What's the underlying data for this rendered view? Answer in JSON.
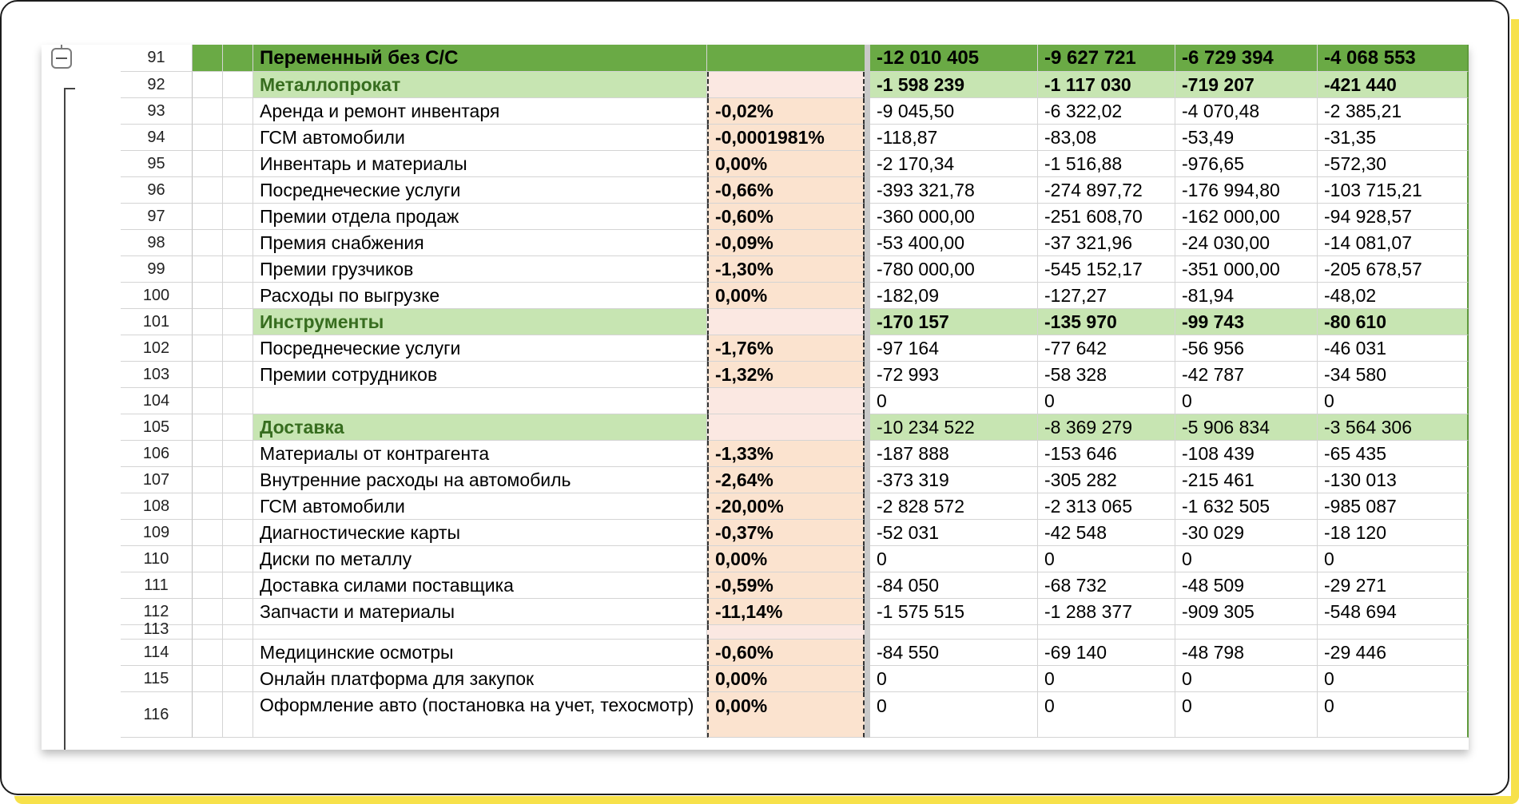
{
  "sheet": {
    "outline_button": "collapse",
    "rows": [
      {
        "num": "91",
        "label": "Переменный без С/С",
        "pct": "",
        "v": [
          "-12 010 405",
          "-9 627 721",
          "-6 729 394",
          "-4 068 553"
        ],
        "kind": "main"
      },
      {
        "num": "92",
        "label": "Металлопрокат",
        "pct": "",
        "v": [
          "-1 598 239",
          "-1 117 030",
          "-719 207",
          "-421 440"
        ],
        "kind": "sub"
      },
      {
        "num": "93",
        "label": "Аренда и ремонт инвентаря",
        "pct": "-0,02%",
        "v": [
          "-9 045,50",
          "-6 322,02",
          "-4 070,48",
          "-2 385,21"
        ],
        "kind": "item"
      },
      {
        "num": "94",
        "label": "ГСМ автомобили",
        "pct": "-0,0001981%",
        "v": [
          "-118,87",
          "-83,08",
          "-53,49",
          "-31,35"
        ],
        "kind": "item"
      },
      {
        "num": "95",
        "label": "Инвентарь и материалы",
        "pct": "0,00%",
        "v": [
          "-2 170,34",
          "-1 516,88",
          "-976,65",
          "-572,30"
        ],
        "kind": "item"
      },
      {
        "num": "96",
        "label": "Посреднеческие услуги",
        "pct": "-0,66%",
        "v": [
          "-393 321,78",
          "-274 897,72",
          "-176 994,80",
          "-103 715,21"
        ],
        "kind": "item"
      },
      {
        "num": "97",
        "label": "Премии отдела продаж",
        "pct": "-0,60%",
        "v": [
          "-360 000,00",
          "-251 608,70",
          "-162 000,00",
          "-94 928,57"
        ],
        "kind": "item"
      },
      {
        "num": "98",
        "label": "Премия снабжения",
        "pct": "-0,09%",
        "v": [
          "-53 400,00",
          "-37 321,96",
          "-24 030,00",
          "-14 081,07"
        ],
        "kind": "item"
      },
      {
        "num": "99",
        "label": "Премии грузчиков",
        "pct": "-1,30%",
        "v": [
          "-780 000,00",
          "-545 152,17",
          "-351 000,00",
          "-205 678,57"
        ],
        "kind": "item"
      },
      {
        "num": "100",
        "label": "Расходы по выгрузке",
        "pct": "0,00%",
        "v": [
          "-182,09",
          "-127,27",
          "-81,94",
          "-48,02"
        ],
        "kind": "item"
      },
      {
        "num": "101",
        "label": "Инструменты",
        "pct": "",
        "v": [
          "-170 157",
          "-135 970",
          "-99 743",
          "-80 610"
        ],
        "kind": "sub"
      },
      {
        "num": "102",
        "label": "Посреднеческие услуги",
        "pct": "-1,76%",
        "v": [
          "-97 164",
          "-77 642",
          "-56 956",
          "-46 031"
        ],
        "kind": "item"
      },
      {
        "num": "103",
        "label": "Премии сотрудников",
        "pct": "-1,32%",
        "v": [
          "-72 993",
          "-58 328",
          "-42 787",
          "-34 580"
        ],
        "kind": "item"
      },
      {
        "num": "104",
        "label": "",
        "pct": "",
        "v": [
          "0",
          "0",
          "0",
          "0"
        ],
        "kind": "empty"
      },
      {
        "num": "105",
        "label": "Доставка",
        "pct": "",
        "v": [
          "-10 234 522",
          "-8 369 279",
          "-5 906 834",
          "-3 564 306"
        ],
        "kind": "sub-light"
      },
      {
        "num": "106",
        "label": "Материалы от контрагента",
        "pct": "-1,33%",
        "v": [
          "-187 888",
          "-153 646",
          "-108 439",
          "-65 435"
        ],
        "kind": "item"
      },
      {
        "num": "107",
        "label": "Внутренние расходы на автомобиль",
        "pct": "-2,64%",
        "v": [
          "-373 319",
          "-305 282",
          "-215 461",
          "-130 013"
        ],
        "kind": "item"
      },
      {
        "num": "108",
        "label": "ГСМ автомобили",
        "pct": "-20,00%",
        "v": [
          "-2 828 572",
          "-2 313 065",
          "-1 632 505",
          "-985 087"
        ],
        "kind": "item"
      },
      {
        "num": "109",
        "label": "Диагностические карты",
        "pct": "-0,37%",
        "v": [
          "-52 031",
          "-42 548",
          "-30 029",
          "-18 120"
        ],
        "kind": "item"
      },
      {
        "num": "110",
        "label": "Диски по металлу",
        "pct": "0,00%",
        "v": [
          "0",
          "0",
          "0",
          "0"
        ],
        "kind": "item"
      },
      {
        "num": "111",
        "label": "Доставка силами поставщика",
        "pct": "-0,59%",
        "v": [
          "-84 050",
          "-68 732",
          "-48 509",
          "-29 271"
        ],
        "kind": "item"
      },
      {
        "num": "112",
        "label": "Запчасти и материалы",
        "pct": "-11,14%",
        "v": [
          "-1 575 515",
          "-1 288 377",
          "-909 305",
          "-548 694"
        ],
        "kind": "item"
      },
      {
        "num": "113",
        "label": "",
        "pct": "",
        "v": [
          "",
          "",
          "",
          ""
        ],
        "kind": "short"
      },
      {
        "num": "114",
        "label": "Медицинские осмотры",
        "pct": "-0,60%",
        "v": [
          "-84 550",
          "-69 140",
          "-48 798",
          "-29 446"
        ],
        "kind": "item"
      },
      {
        "num": "115",
        "label": "Онлайн платформа для закупок",
        "pct": "0,00%",
        "v": [
          "0",
          "0",
          "0",
          "0"
        ],
        "kind": "item"
      },
      {
        "num": "116",
        "label": "Оформление авто (постановка на учет, техосмотр)",
        "pct": "0,00%",
        "v": [
          "0",
          "0",
          "0",
          "0"
        ],
        "kind": "tall"
      }
    ]
  }
}
